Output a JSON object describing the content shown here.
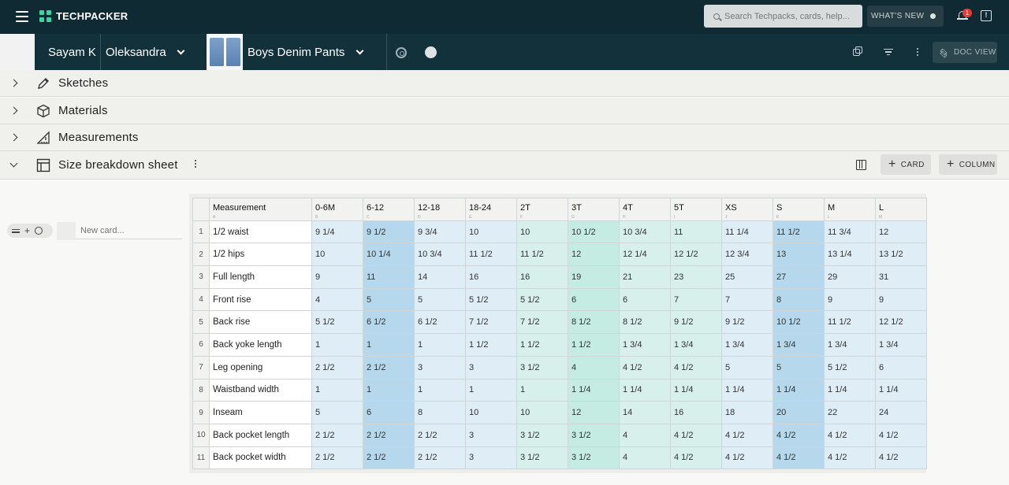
{
  "app": {
    "brand": "TECHPACKER",
    "search_placeholder": "Search Techpacks, cards, help...",
    "whats_new": "WHAT'S NEW",
    "notification_count": "1",
    "feedback_glyph": "!"
  },
  "docbar": {
    "user": "Sayam K",
    "brand": "Oleksandra",
    "product": "Boys Denim Pants",
    "doc_view": "DOC VIEW"
  },
  "sections": {
    "sketches": "Sketches",
    "materials": "Materials",
    "measurements": "Measurements",
    "size_breakdown": "Size breakdown sheet",
    "card_button": "CARD",
    "column_button": "COLUMN"
  },
  "cards": {
    "new_card_placeholder": "New card..."
  },
  "sheet": {
    "header": {
      "measurement": "Measurement",
      "measurement_letter": "A",
      "sizes": [
        "0-6M",
        "6-12",
        "12-18",
        "18-24",
        "2T",
        "3T",
        "4T",
        "5T",
        "XS",
        "S",
        "M",
        "L"
      ],
      "letters": [
        "B",
        "C",
        "D",
        "E",
        "F",
        "G",
        "H",
        "I",
        "J",
        "K",
        "L",
        "M"
      ]
    },
    "rows": [
      {
        "n": "1",
        "name": "1/2 waist",
        "values": [
          "9 1/4",
          "9 1/2",
          "9 3/4",
          "10",
          "10",
          "10 1/2",
          "10 3/4",
          "11",
          "11 1/4",
          "11 1/2",
          "11 3/4",
          "12"
        ]
      },
      {
        "n": "2",
        "name": "1/2 hips",
        "values": [
          "10",
          "10 1/4",
          "10 3/4",
          "11 1/2",
          "11 1/2",
          "12",
          "12 1/4",
          "12 1/2",
          "12 3/4",
          "13",
          "13 1/4",
          "13 1/2"
        ]
      },
      {
        "n": "3",
        "name": "Full length",
        "values": [
          "9",
          "11",
          "14",
          "16",
          "16",
          "19",
          "21",
          "23",
          "25",
          "27",
          "29",
          "31"
        ]
      },
      {
        "n": "4",
        "name": "Front rise",
        "values": [
          "4",
          "5",
          "5",
          "5 1/2",
          "5 1/2",
          "6",
          "6",
          "7",
          "7",
          "8",
          "9",
          "9"
        ]
      },
      {
        "n": "5",
        "name": "Back rise",
        "values": [
          "5 1/2",
          "6 1/2",
          "6 1/2",
          "7 1/2",
          "7 1/2",
          "8 1/2",
          "8 1/2",
          "9 1/2",
          "9 1/2",
          "10 1/2",
          "11 1/2",
          "12 1/2"
        ]
      },
      {
        "n": "6",
        "name": "Back yoke length",
        "values": [
          "1",
          "1",
          "1",
          "1 1/2",
          "1 1/2",
          "1 1/2",
          "1 3/4",
          "1 3/4",
          "1 3/4",
          "1 3/4",
          "1 3/4",
          "1 3/4"
        ]
      },
      {
        "n": "7",
        "name": "Leg opening",
        "values": [
          "2 1/2",
          "2 1/2",
          "3",
          "3",
          "3 1/2",
          "4",
          "4 1/2",
          "4 1/2",
          "5",
          "5",
          "5 1/2",
          "6"
        ]
      },
      {
        "n": "8",
        "name": "Waistband width",
        "values": [
          "1",
          "1",
          "1",
          "1",
          "1",
          "1 1/4",
          "1 1/4",
          "1 1/4",
          "1 1/4",
          "1 1/4",
          "1 1/4",
          "1 1/4"
        ]
      },
      {
        "n": "9",
        "name": "Inseam",
        "values": [
          "5",
          "6",
          "8",
          "10",
          "10",
          "12",
          "14",
          "16",
          "18",
          "20",
          "22",
          "24"
        ]
      },
      {
        "n": "10",
        "name": "Back pocket length",
        "values": [
          "2 1/2",
          "2 1/2",
          "2 1/2",
          "3",
          "3 1/2",
          "3 1/2",
          "4",
          "4 1/2",
          "4 1/2",
          "4 1/2",
          "4 1/2",
          "4 1/2"
        ]
      },
      {
        "n": "11",
        "name": "Back pocket width",
        "values": [
          "2 1/2",
          "2 1/2",
          "2 1/2",
          "3",
          "3 1/2",
          "3 1/2",
          "4",
          "4 1/2",
          "4 1/2",
          "4 1/2",
          "4 1/2",
          "4 1/2"
        ]
      }
    ],
    "column_styles": [
      "blue",
      "sel",
      "blue",
      "blue",
      "green",
      "green2",
      "green",
      "green",
      "blue",
      "sel",
      "blue",
      "blue"
    ]
  },
  "colors": {
    "topbar": "#0f2a33",
    "docbar": "#12313a",
    "brand_accent": "#3dd6a3",
    "badge": "#e53935"
  }
}
